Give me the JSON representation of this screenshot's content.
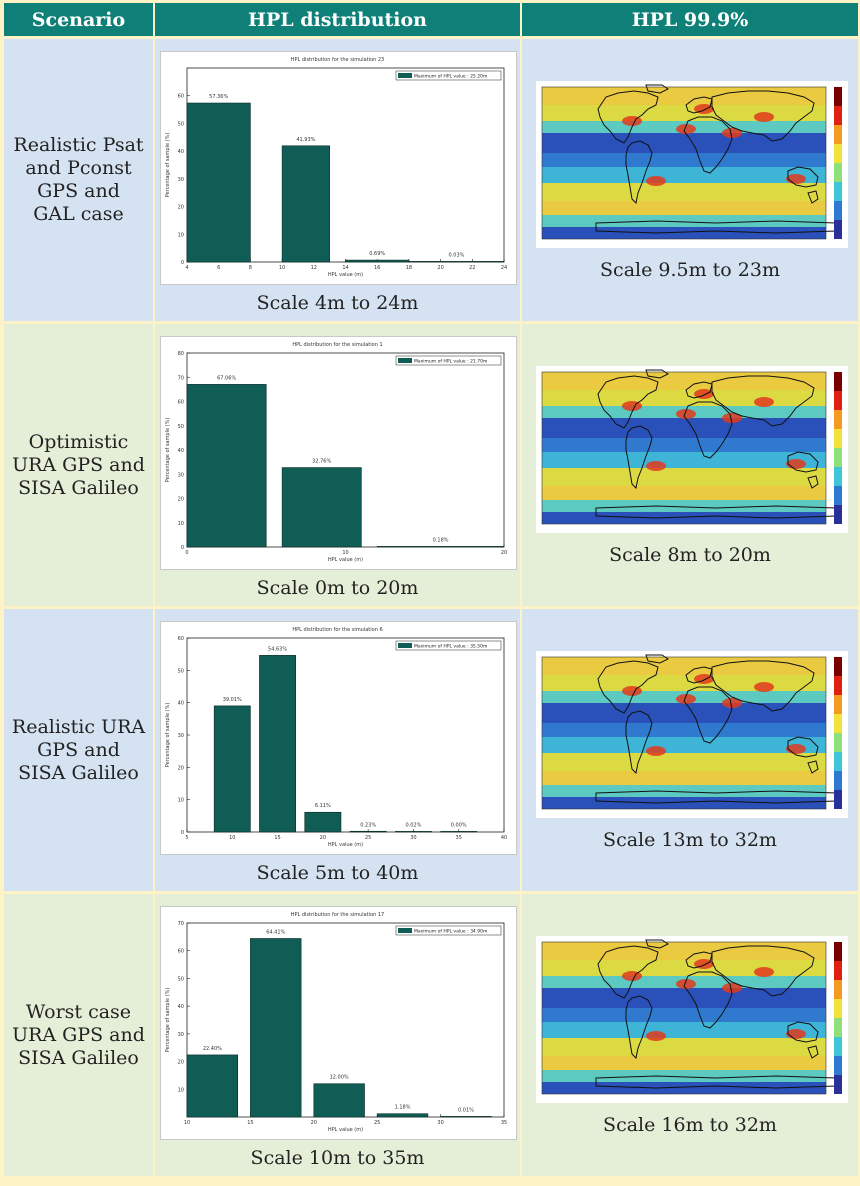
{
  "headers": {
    "scenario": "Scenario",
    "distribution": "HPL distribution",
    "hpl999": "HPL 99.9%"
  },
  "legend_prefix": "Maximum of HPL value : ",
  "xlabel": "HPL value (m)",
  "ylabel": "Percentage of sample (%)",
  "rows": [
    {
      "scenario": "Realistic Psat\nand Pconst\nGPS and\nGAL case",
      "dist_caption": "Scale 4m to 24m",
      "map_caption": "Scale 9.5m to 23m",
      "chart_data": {
        "type": "bar",
        "title": "HPL distribution for the simulation 23",
        "legend": "Maximum of HPL value : 25.20m",
        "xticks": [
          4,
          6,
          8,
          10,
          12,
          14,
          16,
          18,
          20,
          22,
          24
        ],
        "xlim": [
          4,
          24
        ],
        "ylim": [
          0,
          70
        ],
        "yticks": [
          0,
          10,
          20,
          30,
          40,
          50,
          60
        ],
        "bars": [
          {
            "from": 4,
            "to": 8,
            "value": 57.36,
            "label": "57.36%"
          },
          {
            "from": 10,
            "to": 13,
            "value": 41.93,
            "label": "41.93%"
          },
          {
            "from": 14,
            "to": 18,
            "value": 0.69,
            "label": "0.69%"
          },
          {
            "from": 18,
            "to": 24,
            "value": 0.03,
            "label": "0.03%"
          }
        ]
      }
    },
    {
      "scenario": "Optimistic\nURA GPS and\nSISA Galileo",
      "dist_caption": "Scale 0m to 20m",
      "map_caption": "Scale 8m to 20m",
      "chart_data": {
        "type": "bar",
        "title": "HPL distribution for the simulation 1",
        "legend": "Maximum of HPL value : 21.70m",
        "xticks": [
          0,
          10,
          20
        ],
        "xlim": [
          0,
          20
        ],
        "ylim": [
          0,
          80
        ],
        "yticks": [
          0,
          10,
          20,
          30,
          40,
          50,
          60,
          70,
          80
        ],
        "bars": [
          {
            "from": 0,
            "to": 5,
            "value": 67.06,
            "label": "67.06%"
          },
          {
            "from": 6,
            "to": 11,
            "value": 32.76,
            "label": "32.76%"
          },
          {
            "from": 12,
            "to": 20,
            "value": 0.18,
            "label": "0.18%"
          }
        ]
      }
    },
    {
      "scenario": "Realistic URA\nGPS and\nSISA Galileo",
      "dist_caption": "Scale 5m to 40m",
      "map_caption": "Scale 13m to 32m",
      "chart_data": {
        "type": "bar",
        "title": "HPL distribution for the simulation 6",
        "legend": "Maximum of HPL value : 35.50m",
        "xticks": [
          5,
          10,
          15,
          20,
          25,
          30,
          35,
          40
        ],
        "xlim": [
          5,
          40
        ],
        "ylim": [
          0,
          60
        ],
        "yticks": [
          0,
          10,
          20,
          30,
          40,
          50,
          60
        ],
        "bars": [
          {
            "from": 8,
            "to": 12,
            "value": 39.01,
            "label": "39.01%"
          },
          {
            "from": 13,
            "to": 17,
            "value": 54.63,
            "label": "54.63%"
          },
          {
            "from": 18,
            "to": 22,
            "value": 6.11,
            "label": "6.11%"
          },
          {
            "from": 23,
            "to": 27,
            "value": 0.23,
            "label": "0.23%"
          },
          {
            "from": 28,
            "to": 32,
            "value": 0.02,
            "label": "0.02%"
          },
          {
            "from": 33,
            "to": 37,
            "value": 0.0,
            "label": "0.00%"
          }
        ]
      }
    },
    {
      "scenario": "Worst case\nURA GPS and\nSISA Galileo",
      "dist_caption": "Scale 10m to 35m",
      "map_caption": "Scale 16m to 32m",
      "chart_data": {
        "type": "bar",
        "title": "HPL distribution for the simulation 17",
        "legend": "Maximum of HPL value : 34.90m",
        "xticks": [
          10,
          15,
          20,
          25,
          30,
          35
        ],
        "xlim": [
          10,
          35
        ],
        "ylim": [
          0,
          70
        ],
        "yticks": [
          10,
          20,
          30,
          40,
          50,
          60,
          70
        ],
        "bars": [
          {
            "from": 10,
            "to": 14,
            "value": 22.4,
            "label": "22.40%"
          },
          {
            "from": 15,
            "to": 19,
            "value": 64.41,
            "label": "64.41%"
          },
          {
            "from": 20,
            "to": 24,
            "value": 12.0,
            "label": "12.00%"
          },
          {
            "from": 25,
            "to": 29,
            "value": 1.18,
            "label": "1.18%"
          },
          {
            "from": 30,
            "to": 34,
            "value": 0.01,
            "label": "0.01%"
          }
        ]
      }
    }
  ],
  "colors": {
    "header_bg": "#0e8078",
    "bar_fill": "#0f5d55",
    "row_blue": "#d5e2f1",
    "row_green": "#e5eed7",
    "page_bg": "#fdf3c6"
  }
}
